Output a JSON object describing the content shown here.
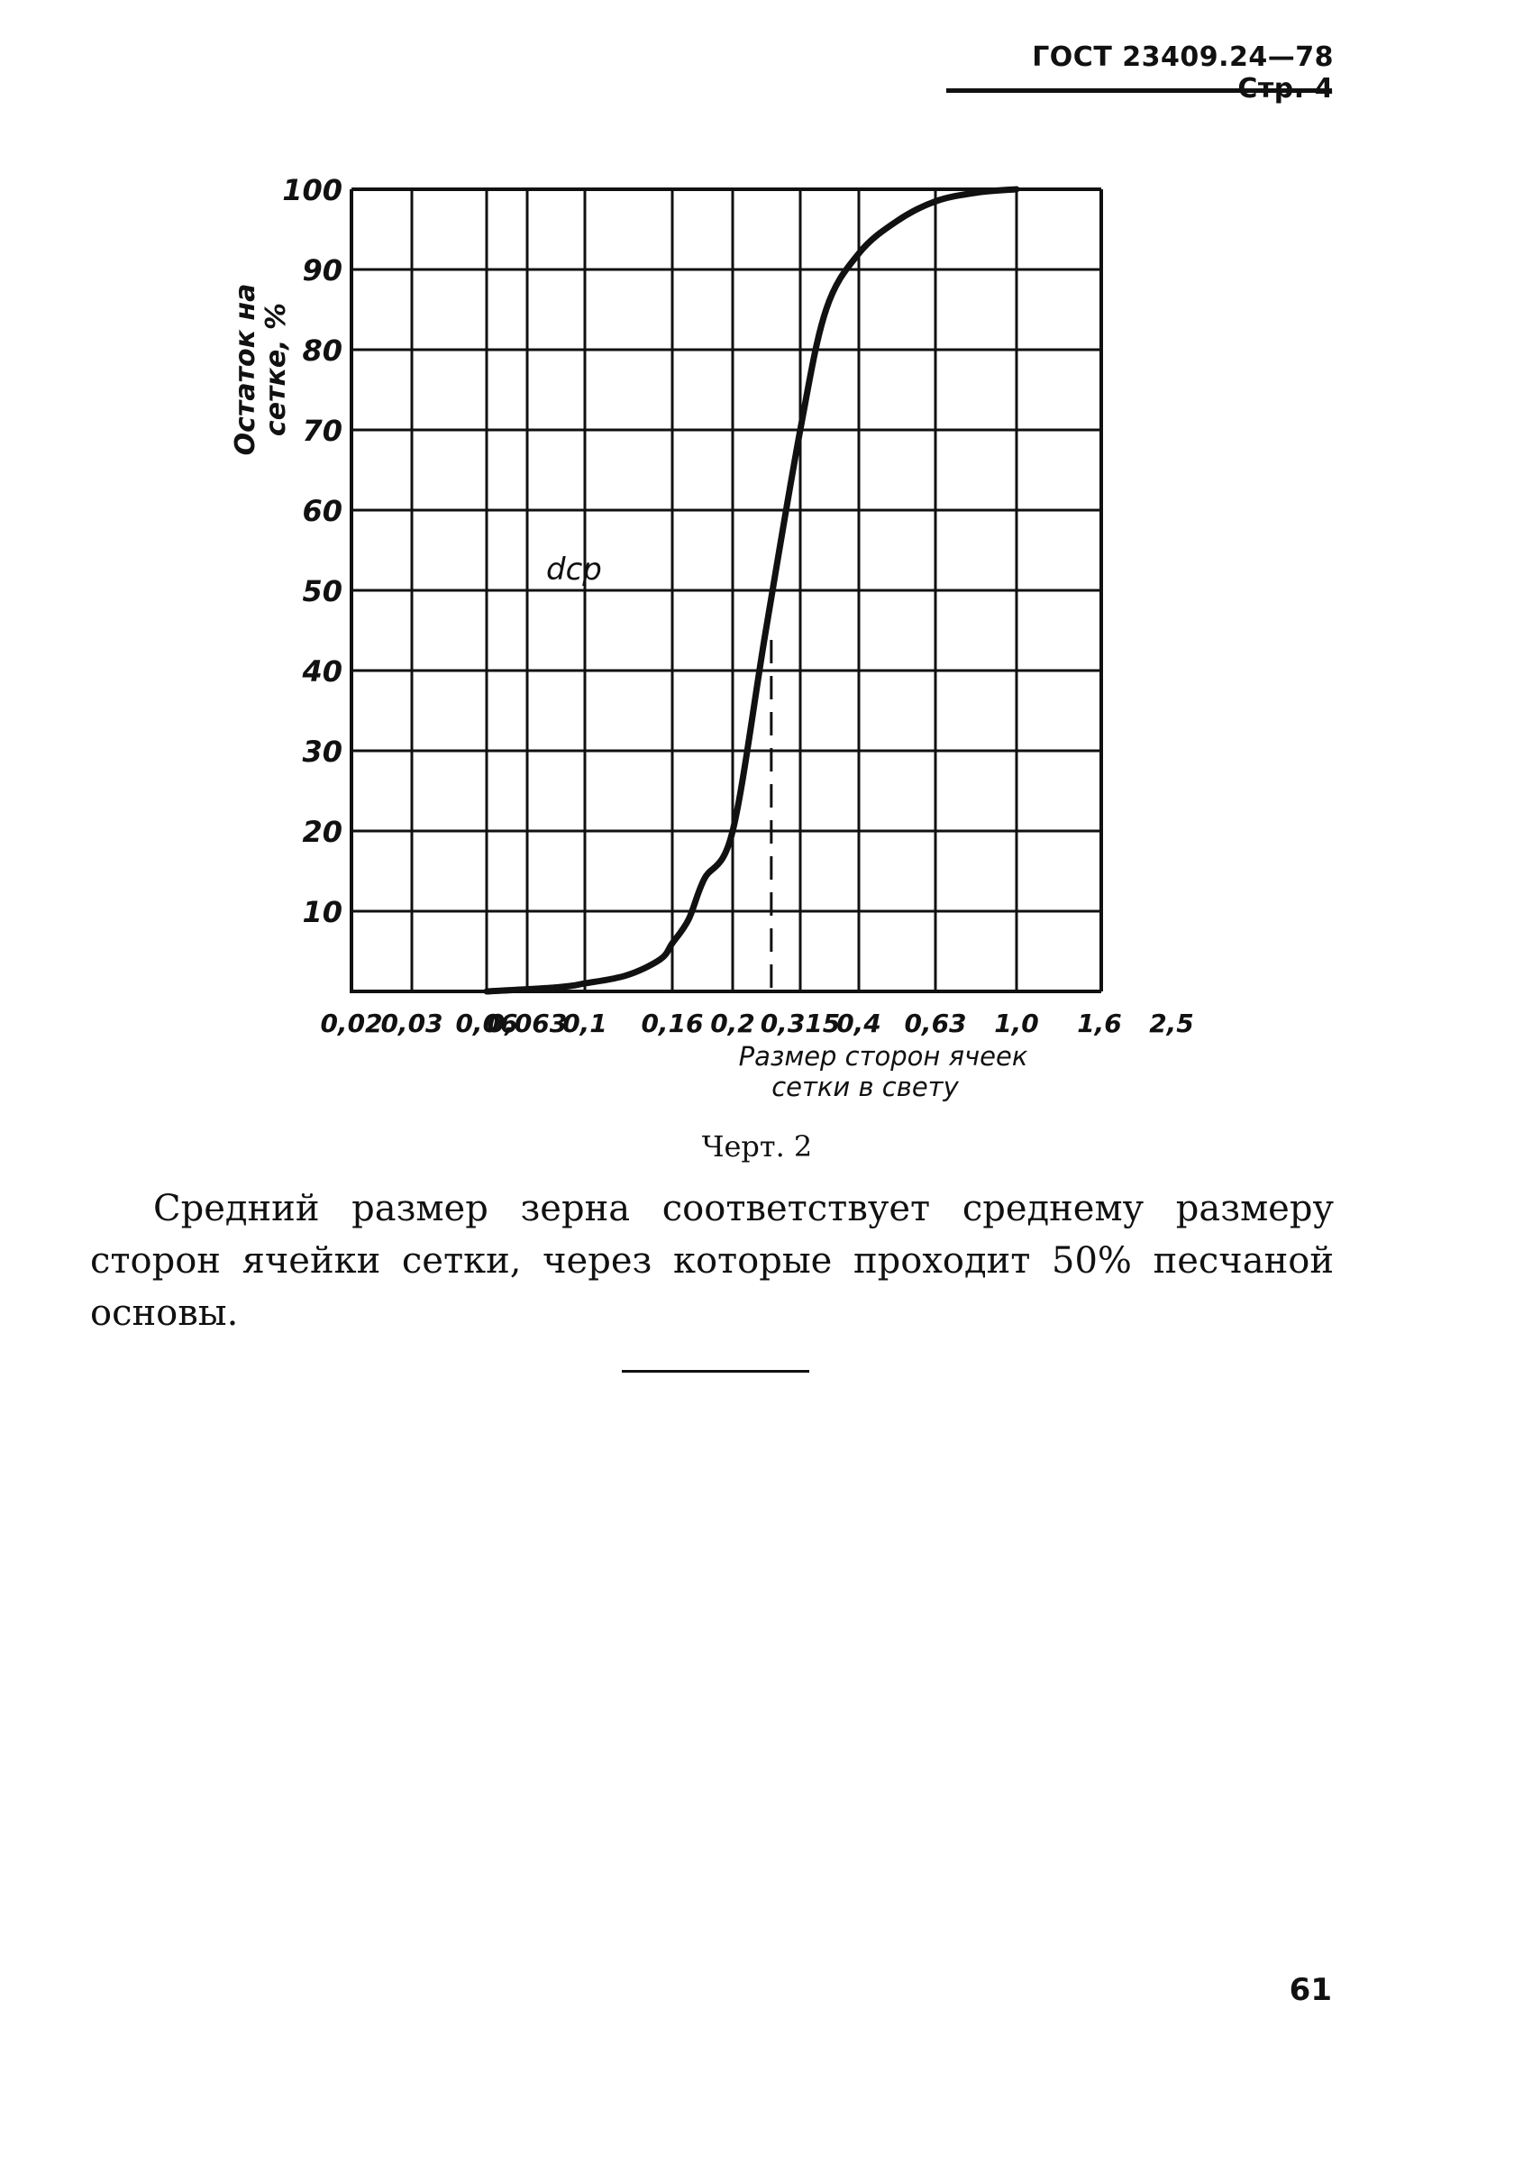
{
  "header": {
    "title": "ГОСТ 23409.24—78 Стр. 4"
  },
  "chart_data": {
    "type": "line",
    "ylabel": "Остаток на сетке, %",
    "xlabel": "Размер сторон ячеек сетки в свету",
    "x_ticks": [
      "0,02",
      "0,03",
      "0,06",
      "0,063",
      "0,1",
      "0,16",
      "0,2",
      "0,315",
      "0,4",
      "0,63",
      "1,0",
      "1,6",
      "2,5"
    ],
    "y_ticks": [
      "10",
      "20",
      "30",
      "40",
      "50",
      "60",
      "70",
      "80",
      "90",
      "100"
    ],
    "ylim": [
      0,
      100
    ],
    "grid": true,
    "annotation": "dср",
    "series": [
      {
        "x": [
          0.06,
          0.08,
          0.1,
          0.125,
          0.15,
          0.16,
          0.17,
          0.18,
          0.2,
          0.25,
          0.315,
          0.35,
          0.4,
          0.5,
          0.63,
          0.8,
          1.0
        ],
        "values": [
          0,
          0.5,
          1,
          2,
          4,
          6,
          9,
          14,
          20,
          45,
          70,
          85,
          92,
          96,
          98.5,
          99.6,
          100
        ]
      }
    ],
    "median_marker": {
      "x": 0.25,
      "y": 50
    }
  },
  "caption": "Черт. 2",
  "paragraph": "Средний размер зерна соответствует среднему размеру сторон ячейки сетки, через которые проходит 50% песчаной основы.",
  "page_number": "61"
}
